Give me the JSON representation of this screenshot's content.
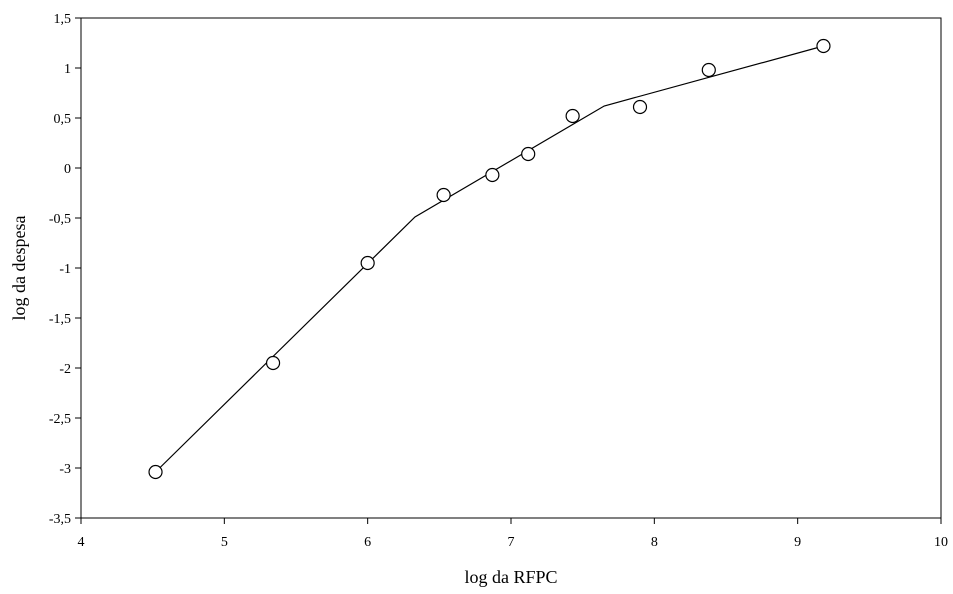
{
  "chart_data": {
    "type": "scatter",
    "xlabel": "log da RFPC",
    "ylabel": "log da despesa",
    "xlim": [
      4,
      10
    ],
    "ylim": [
      -3.5,
      1.5
    ],
    "x_ticks": [
      4,
      5,
      6,
      7,
      8,
      9,
      10
    ],
    "y_ticks": [
      -3.5,
      -3,
      -2.5,
      -2,
      -1.5,
      -1,
      -0.5,
      0,
      0.5,
      1,
      1.5
    ],
    "x_tick_labels": [
      "4",
      "5",
      "6",
      "7",
      "8",
      "9",
      "10"
    ],
    "y_tick_labels": [
      "-3,5",
      "-3",
      "-2,5",
      "-2",
      "-1,5",
      "-1",
      "-0,5",
      "0",
      "0,5",
      "1",
      "1,5"
    ],
    "grid": false,
    "points": [
      {
        "x": 4.52,
        "y": -3.04
      },
      {
        "x": 5.34,
        "y": -1.95
      },
      {
        "x": 6.0,
        "y": -0.95
      },
      {
        "x": 6.53,
        "y": -0.27
      },
      {
        "x": 6.87,
        "y": -0.07
      },
      {
        "x": 7.12,
        "y": 0.14
      },
      {
        "x": 7.43,
        "y": 0.52
      },
      {
        "x": 7.9,
        "y": 0.61
      },
      {
        "x": 8.38,
        "y": 0.98
      },
      {
        "x": 9.18,
        "y": 1.22
      }
    ],
    "fit_line": [
      {
        "x": 4.52,
        "y": -3.04
      },
      {
        "x": 6.33,
        "y": -0.49
      },
      {
        "x": 7.65,
        "y": 0.62
      },
      {
        "x": 9.18,
        "y": 1.22
      }
    ],
    "marker": "open-circle",
    "colors": {
      "line": "#000000",
      "marker_stroke": "#000000",
      "marker_fill": "#ffffff"
    }
  }
}
